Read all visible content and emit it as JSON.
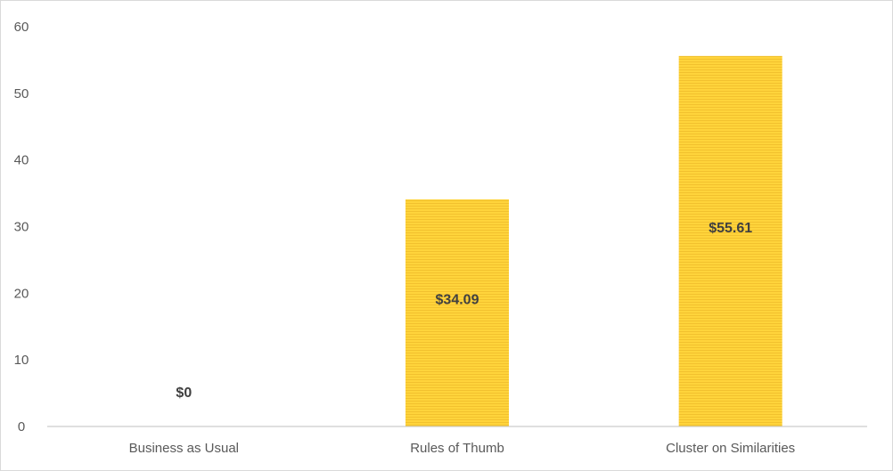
{
  "chart_data": {
    "type": "bar",
    "title": "",
    "xlabel": "",
    "ylabel": "",
    "categories": [
      "Business as Usual",
      "Rules of Thumb",
      "Cluster on Similarities"
    ],
    "values": [
      0,
      34.09,
      55.61
    ],
    "data_labels": [
      "$0",
      "$34.09",
      "$55.61"
    ],
    "ylim": [
      0,
      60
    ],
    "yticks": [
      0,
      10,
      20,
      30,
      40,
      50,
      60
    ],
    "grid": false,
    "legend": "none",
    "colors": {
      "bar": "#FFD43B",
      "bar_stripe": "#F4C430",
      "axis": "#bfbfbf",
      "text": "#595959",
      "label": "#404040"
    }
  }
}
